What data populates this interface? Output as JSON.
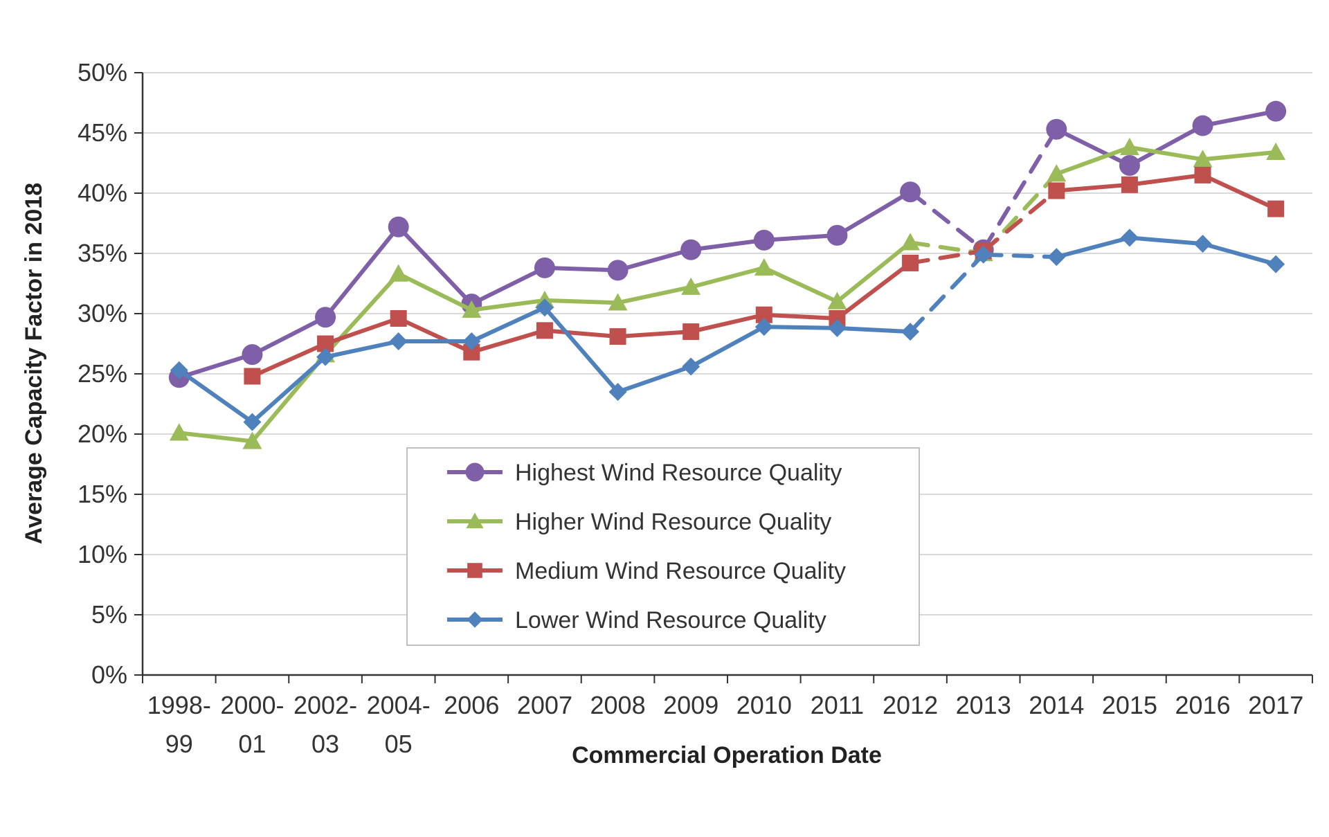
{
  "chart_data": {
    "type": "line",
    "title": "",
    "xlabel": "Commercial Operation Date",
    "ylabel": "Average Capacity Factor in 2018",
    "categories": [
      [
        "1998-",
        "99"
      ],
      [
        "2000-",
        "01"
      ],
      [
        "2002-",
        "03"
      ],
      [
        "2004-",
        "05"
      ],
      [
        "2006"
      ],
      [
        "2007"
      ],
      [
        "2008"
      ],
      [
        "2009"
      ],
      [
        "2010"
      ],
      [
        "2011"
      ],
      [
        "2012"
      ],
      [
        "2013"
      ],
      [
        "2014"
      ],
      [
        "2015"
      ],
      [
        "2016"
      ],
      [
        "2017"
      ]
    ],
    "ylim": [
      0,
      50
    ],
    "yticks": [
      "0%",
      "5%",
      "10%",
      "15%",
      "20%",
      "25%",
      "30%",
      "35%",
      "40%",
      "45%",
      "50%"
    ],
    "grid": true,
    "legend_position": "bottom-center",
    "dashed_segment": [
      10,
      12
    ],
    "series": [
      {
        "name": "Highest Wind Resource Quality",
        "color": "#7E5FA8",
        "marker": "circle",
        "values": [
          24.7,
          26.6,
          29.7,
          37.2,
          30.8,
          33.8,
          33.6,
          35.3,
          36.1,
          36.5,
          40.1,
          35.3,
          45.3,
          42.3,
          45.6,
          46.8
        ]
      },
      {
        "name": "Higher Wind Resource Quality",
        "color": "#9BBB59",
        "marker": "triangle",
        "values": [
          20.1,
          19.4,
          26.6,
          33.3,
          30.3,
          31.1,
          30.9,
          32.2,
          33.8,
          31.0,
          35.9,
          35.0,
          41.6,
          43.8,
          42.8,
          43.4
        ]
      },
      {
        "name": "Medium Wind Resource Quality",
        "color": "#C0504D",
        "marker": "square",
        "values": [
          null,
          24.8,
          27.5,
          29.6,
          26.8,
          28.6,
          28.1,
          28.5,
          29.9,
          29.6,
          34.2,
          35.2,
          40.2,
          40.7,
          41.5,
          38.7
        ]
      },
      {
        "name": "Lower Wind Resource Quality",
        "color": "#4F81BD",
        "marker": "diamond",
        "values": [
          25.3,
          21.0,
          26.4,
          27.7,
          27.7,
          30.5,
          23.5,
          25.6,
          28.9,
          28.8,
          28.5,
          34.9,
          34.7,
          36.3,
          35.8,
          34.1
        ]
      }
    ]
  }
}
